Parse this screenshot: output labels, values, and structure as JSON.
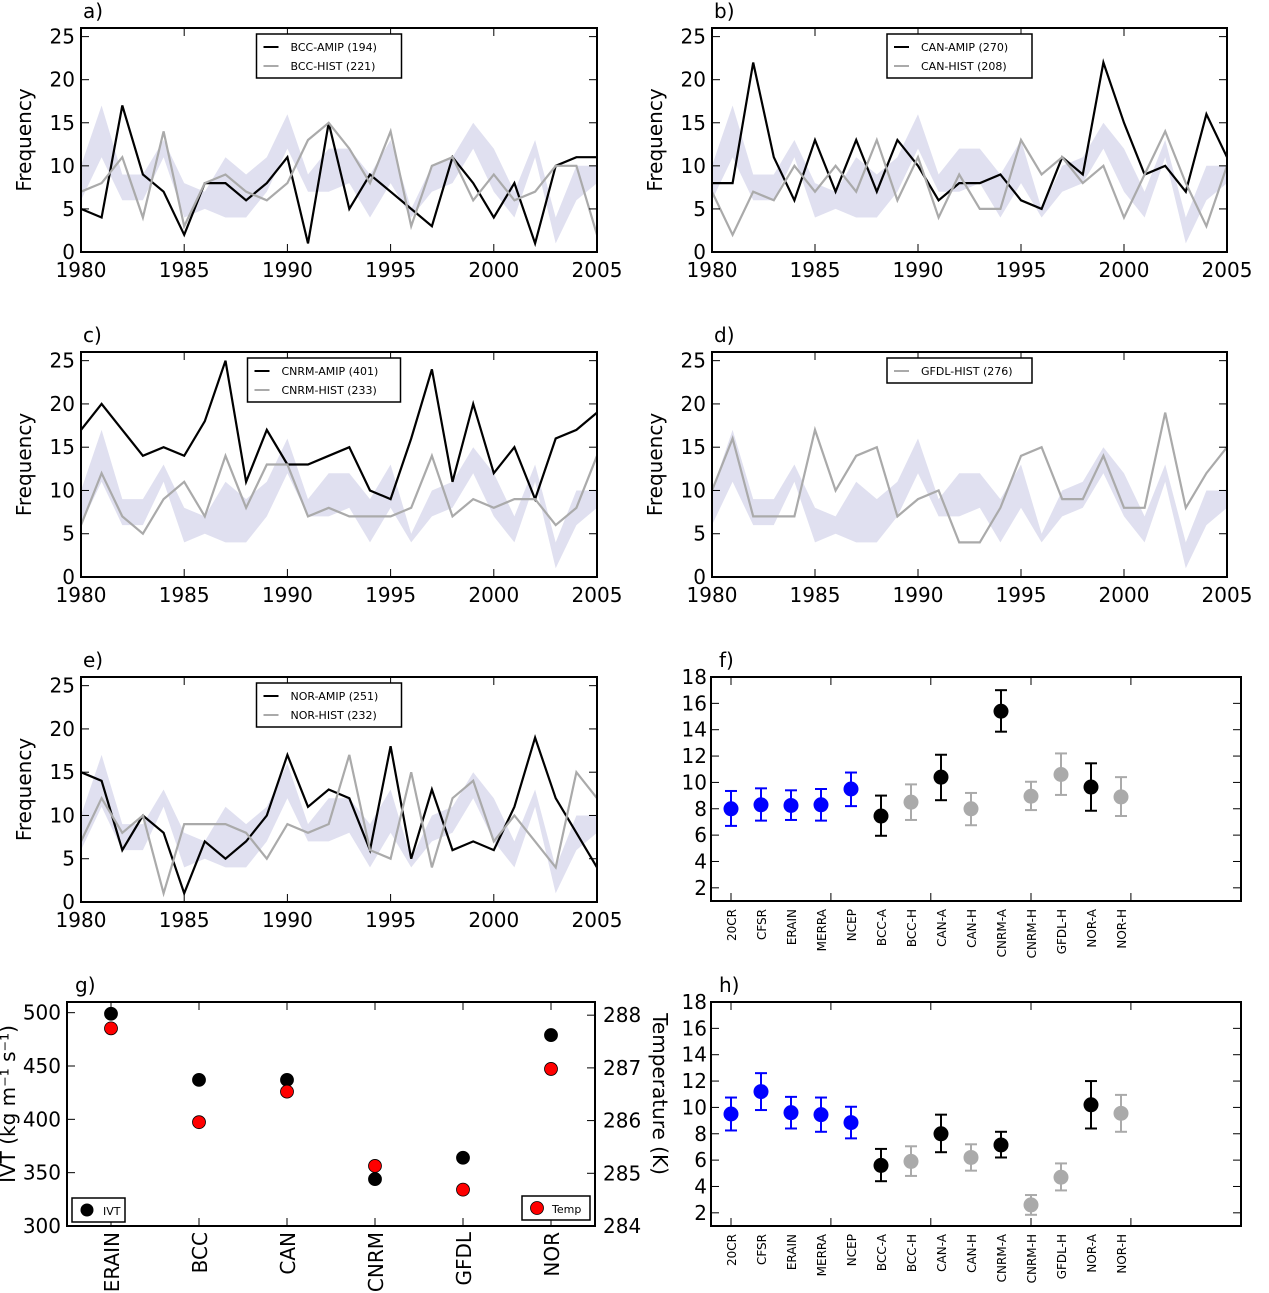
{
  "chart_data": [
    {
      "id": "a",
      "type": "line",
      "panel_label": "a)",
      "ylabel": "Frequency",
      "xlabel": "",
      "xlim": [
        1980,
        2005
      ],
      "ylim": [
        0,
        26
      ],
      "xticks": [
        1980,
        1985,
        1990,
        1995,
        2000,
        2005
      ],
      "yticks": [
        0,
        5,
        10,
        15,
        20,
        25
      ],
      "x": [
        1980,
        1981,
        1982,
        1983,
        1984,
        1985,
        1986,
        1987,
        1988,
        1989,
        1990,
        1991,
        1992,
        1993,
        1994,
        1995,
        1996,
        1997,
        1998,
        1999,
        2000,
        2001,
        2002,
        2003,
        2004,
        2005
      ],
      "band": {
        "name": "reanalysis range",
        "color": "#e0e0f0",
        "lower": [
          6,
          11,
          6,
          6,
          11,
          4,
          5,
          4,
          4,
          7,
          12,
          7,
          7,
          8,
          4,
          8,
          4,
          7,
          8,
          12,
          7,
          4,
          11,
          1,
          6,
          8
        ],
        "upper": [
          10,
          17,
          9,
          9,
          13,
          8,
          7,
          11,
          9,
          11,
          16,
          9,
          12,
          12,
          9,
          13,
          5,
          10,
          11,
          15,
          12,
          7,
          13,
          4,
          10,
          10
        ]
      },
      "legend_position": "top-center",
      "series": [
        {
          "name": "BCC-AMIP (194)",
          "color": "#000000",
          "values": [
            5,
            4,
            17,
            9,
            7,
            2,
            8,
            8,
            6,
            8,
            11,
            1,
            15,
            5,
            9,
            7,
            5,
            3,
            11,
            8,
            4,
            8,
            1,
            10,
            11,
            11
          ]
        },
        {
          "name": "BCC-HIST (221)",
          "color": "#aaaaaa",
          "values": [
            7,
            8,
            11,
            4,
            14,
            3,
            8,
            9,
            7,
            6,
            8,
            13,
            15,
            12,
            8,
            14,
            3,
            10,
            11,
            6,
            9,
            6,
            7,
            10,
            10,
            2
          ]
        }
      ]
    },
    {
      "id": "b",
      "type": "line",
      "panel_label": "b)",
      "ylabel": "Frequency",
      "xlabel": "",
      "xlim": [
        1980,
        2005
      ],
      "ylim": [
        0,
        26
      ],
      "xticks": [
        1980,
        1985,
        1990,
        1995,
        2000,
        2005
      ],
      "yticks": [
        0,
        5,
        10,
        15,
        20,
        25
      ],
      "x": [
        1980,
        1981,
        1982,
        1983,
        1984,
        1985,
        1986,
        1987,
        1988,
        1989,
        1990,
        1991,
        1992,
        1993,
        1994,
        1995,
        1996,
        1997,
        1998,
        1999,
        2000,
        2001,
        2002,
        2003,
        2004,
        2005
      ],
      "band": {
        "name": "reanalysis range",
        "color": "#e0e0f0",
        "lower": [
          6,
          11,
          6,
          6,
          11,
          4,
          5,
          4,
          4,
          7,
          12,
          7,
          7,
          8,
          4,
          8,
          4,
          7,
          8,
          12,
          7,
          4,
          11,
          1,
          6,
          8
        ],
        "upper": [
          10,
          17,
          9,
          9,
          13,
          8,
          7,
          11,
          9,
          11,
          16,
          9,
          12,
          12,
          9,
          13,
          5,
          10,
          11,
          15,
          12,
          7,
          13,
          4,
          10,
          10
        ]
      },
      "legend_position": "top-center",
      "series": [
        {
          "name": "CAN-AMIP (270)",
          "color": "#000000",
          "values": [
            8,
            8,
            22,
            11,
            6,
            13,
            7,
            13,
            7,
            13,
            10,
            6,
            8,
            8,
            9,
            6,
            5,
            11,
            9,
            22,
            15,
            9,
            10,
            7,
            16,
            11
          ]
        },
        {
          "name": "CAN-HIST (208)",
          "color": "#aaaaaa",
          "values": [
            7,
            2,
            7,
            6,
            10,
            7,
            10,
            7,
            13,
            6,
            11,
            4,
            9,
            5,
            5,
            13,
            9,
            11,
            8,
            10,
            4,
            9,
            14,
            8,
            3,
            10
          ]
        }
      ]
    },
    {
      "id": "c",
      "type": "line",
      "panel_label": "c)",
      "ylabel": "Frequency",
      "xlabel": "",
      "xlim": [
        1980,
        2005
      ],
      "ylim": [
        0,
        26
      ],
      "xticks": [
        1980,
        1985,
        1990,
        1995,
        2000,
        2005
      ],
      "yticks": [
        0,
        5,
        10,
        15,
        20,
        25
      ],
      "x": [
        1980,
        1981,
        1982,
        1983,
        1984,
        1985,
        1986,
        1987,
        1988,
        1989,
        1990,
        1991,
        1992,
        1993,
        1994,
        1995,
        1996,
        1997,
        1998,
        1999,
        2000,
        2001,
        2002,
        2003,
        2004,
        2005
      ],
      "band": {
        "name": "reanalysis range",
        "color": "#e0e0f0",
        "lower": [
          6,
          11,
          6,
          6,
          11,
          4,
          5,
          4,
          4,
          7,
          12,
          7,
          7,
          8,
          4,
          8,
          4,
          7,
          8,
          12,
          7,
          4,
          11,
          1,
          6,
          8
        ],
        "upper": [
          10,
          17,
          9,
          9,
          13,
          8,
          7,
          11,
          9,
          11,
          16,
          9,
          12,
          12,
          9,
          13,
          5,
          10,
          11,
          15,
          12,
          7,
          13,
          4,
          10,
          10
        ]
      },
      "legend_position": "top-center",
      "series": [
        {
          "name": "CNRM-AMIP (401)",
          "color": "#000000",
          "values": [
            17,
            20,
            17,
            14,
            15,
            14,
            18,
            25,
            11,
            17,
            13,
            13,
            14,
            15,
            10,
            9,
            16,
            24,
            11,
            20,
            12,
            15,
            9,
            16,
            17,
            19
          ]
        },
        {
          "name": "CNRM-HIST (233)",
          "color": "#aaaaaa",
          "values": [
            6,
            12,
            7,
            5,
            9,
            11,
            7,
            14,
            8,
            13,
            13,
            7,
            8,
            7,
            7,
            7,
            8,
            14,
            7,
            9,
            8,
            9,
            9,
            6,
            8,
            14
          ]
        }
      ]
    },
    {
      "id": "d",
      "type": "line",
      "panel_label": "d)",
      "ylabel": "Frequency",
      "xlabel": "",
      "xlim": [
        1980,
        2005
      ],
      "ylim": [
        0,
        26
      ],
      "xticks": [
        1980,
        1985,
        1990,
        1995,
        2000,
        2005
      ],
      "yticks": [
        0,
        5,
        10,
        15,
        20,
        25
      ],
      "x": [
        1980,
        1981,
        1982,
        1983,
        1984,
        1985,
        1986,
        1987,
        1988,
        1989,
        1990,
        1991,
        1992,
        1993,
        1994,
        1995,
        1996,
        1997,
        1998,
        1999,
        2000,
        2001,
        2002,
        2003,
        2004,
        2005
      ],
      "band": {
        "name": "reanalysis range",
        "color": "#e0e0f0",
        "lower": [
          6,
          11,
          6,
          6,
          11,
          4,
          5,
          4,
          4,
          7,
          12,
          7,
          7,
          8,
          4,
          8,
          4,
          7,
          8,
          12,
          7,
          4,
          11,
          1,
          6,
          8
        ],
        "upper": [
          10,
          17,
          9,
          9,
          13,
          8,
          7,
          11,
          9,
          11,
          16,
          9,
          12,
          12,
          9,
          13,
          5,
          10,
          11,
          15,
          12,
          7,
          13,
          4,
          10,
          10
        ]
      },
      "legend_position": "top-center",
      "series": [
        {
          "name": "GFDL-HIST (276)",
          "color": "#aaaaaa",
          "values": [
            10,
            16,
            7,
            7,
            7,
            17,
            10,
            14,
            15,
            7,
            9,
            10,
            4,
            4,
            8,
            14,
            15,
            9,
            9,
            14,
            8,
            8,
            19,
            8,
            12,
            15
          ]
        }
      ]
    },
    {
      "id": "e",
      "type": "line",
      "panel_label": "e)",
      "ylabel": "Frequency",
      "xlabel": "",
      "xlim": [
        1980,
        2005
      ],
      "ylim": [
        0,
        26
      ],
      "xticks": [
        1980,
        1985,
        1990,
        1995,
        2000,
        2005
      ],
      "yticks": [
        0,
        5,
        10,
        15,
        20,
        25
      ],
      "x": [
        1980,
        1981,
        1982,
        1983,
        1984,
        1985,
        1986,
        1987,
        1988,
        1989,
        1990,
        1991,
        1992,
        1993,
        1994,
        1995,
        1996,
        1997,
        1998,
        1999,
        2000,
        2001,
        2002,
        2003,
        2004,
        2005
      ],
      "band": {
        "name": "reanalysis range",
        "color": "#e0e0f0",
        "lower": [
          6,
          11,
          6,
          6,
          11,
          4,
          5,
          4,
          4,
          7,
          12,
          7,
          7,
          8,
          4,
          8,
          4,
          7,
          8,
          12,
          7,
          4,
          11,
          1,
          6,
          8
        ],
        "upper": [
          10,
          17,
          9,
          9,
          13,
          8,
          7,
          11,
          9,
          11,
          16,
          9,
          12,
          12,
          9,
          13,
          5,
          10,
          11,
          15,
          12,
          7,
          13,
          4,
          10,
          10
        ]
      },
      "legend_position": "top-center",
      "series": [
        {
          "name": "NOR-AMIP (251)",
          "color": "#000000",
          "values": [
            15,
            14,
            6,
            10,
            8,
            1,
            7,
            5,
            7,
            10,
            17,
            11,
            13,
            12,
            6,
            18,
            5,
            13,
            6,
            7,
            6,
            11,
            19,
            12,
            8,
            4
          ]
        },
        {
          "name": "NOR-HIST (232)",
          "color": "#aaaaaa",
          "values": [
            7,
            12,
            8,
            10,
            1,
            9,
            9,
            9,
            8,
            5,
            9,
            8,
            9,
            17,
            6,
            5,
            15,
            4,
            12,
            14,
            7,
            10,
            7,
            4,
            15,
            12
          ]
        }
      ]
    },
    {
      "id": "f",
      "type": "scatter",
      "panel_label": "f)",
      "ylabel": "",
      "xlabel": "",
      "ylim": [
        1,
        18
      ],
      "yticks": [
        2,
        4,
        6,
        8,
        10,
        12,
        14,
        16,
        18
      ],
      "categories": [
        "20CR",
        "CFSR",
        "ERAIN",
        "MERRA",
        "NCEP",
        "BCC-A",
        "BCC-H",
        "CAN-A",
        "CAN-H",
        "CNRM-A",
        "CNRM-H",
        "GFDL-H",
        "NOR-A",
        "NOR-H"
      ],
      "values": [
        8.0,
        8.3,
        8.25,
        8.3,
        9.5,
        7.45,
        8.5,
        10.4,
        8.0,
        15.4,
        8.95,
        10.6,
        9.65,
        8.9
      ],
      "err_low": [
        6.7,
        7.1,
        7.15,
        7.1,
        8.2,
        5.95,
        7.15,
        8.65,
        6.75,
        13.85,
        7.9,
        9.05,
        7.85,
        7.45
      ],
      "err_high": [
        9.35,
        9.55,
        9.4,
        9.5,
        10.75,
        9.0,
        9.85,
        12.1,
        9.2,
        17.0,
        10.05,
        12.2,
        11.45,
        10.4
      ],
      "colors": [
        "#0000ff",
        "#0000ff",
        "#0000ff",
        "#0000ff",
        "#0000ff",
        "#000000",
        "#aaaaaa",
        "#000000",
        "#aaaaaa",
        "#000000",
        "#aaaaaa",
        "#aaaaaa",
        "#000000",
        "#aaaaaa"
      ]
    },
    {
      "id": "g",
      "type": "scatter",
      "panel_label": "g)",
      "ylabel": "IVT (kg m⁻¹ s⁻¹)",
      "ylabel_right": "Temperature (K)",
      "xlabel": "",
      "ylim": [
        300,
        510
      ],
      "ylim_right": [
        284,
        288.25
      ],
      "yticks": [
        300,
        350,
        400,
        450,
        500
      ],
      "yticks_right": [
        284,
        285,
        286,
        287,
        288
      ],
      "categories": [
        "ERAIN",
        "BCC",
        "CAN",
        "CNRM",
        "GFDL",
        "NOR"
      ],
      "series": [
        {
          "name": "IVT",
          "color": "#000000",
          "axis": "left",
          "values": [
            499,
            437,
            437,
            344,
            364,
            479
          ]
        },
        {
          "name": "Temp",
          "color": "#ff0000",
          "axis": "right",
          "values": [
            287.75,
            285.97,
            286.55,
            285.14,
            284.69,
            286.98
          ]
        }
      ],
      "legend": [
        {
          "label": "IVT",
          "position": "bottom-left"
        },
        {
          "label": "Temp",
          "position": "bottom-right"
        }
      ]
    },
    {
      "id": "h",
      "type": "scatter",
      "panel_label": "h)",
      "ylabel": "",
      "xlabel": "",
      "ylim": [
        1,
        18
      ],
      "yticks": [
        2,
        4,
        6,
        8,
        10,
        12,
        14,
        16,
        18
      ],
      "categories": [
        "20CR",
        "CFSR",
        "ERAIN",
        "MERRA",
        "NCEP",
        "BCC-A",
        "BCC-H",
        "CAN-A",
        "CAN-H",
        "CNRM-A",
        "CNRM-H",
        "GFDL-H",
        "NOR-A",
        "NOR-H"
      ],
      "values": [
        9.5,
        11.2,
        9.6,
        9.45,
        8.85,
        5.6,
        5.9,
        8.0,
        6.2,
        7.15,
        2.6,
        4.7,
        10.2,
        9.55
      ],
      "err_low": [
        8.25,
        9.8,
        8.4,
        8.15,
        7.65,
        4.4,
        4.8,
        6.6,
        5.2,
        6.2,
        1.85,
        3.7,
        8.4,
        8.15
      ],
      "err_high": [
        10.75,
        12.6,
        10.8,
        10.75,
        10.05,
        6.85,
        7.05,
        9.45,
        7.2,
        8.15,
        3.35,
        5.75,
        12.0,
        10.95
      ],
      "colors": [
        "#0000ff",
        "#0000ff",
        "#0000ff",
        "#0000ff",
        "#0000ff",
        "#000000",
        "#aaaaaa",
        "#000000",
        "#aaaaaa",
        "#000000",
        "#aaaaaa",
        "#aaaaaa",
        "#000000",
        "#aaaaaa"
      ]
    }
  ]
}
